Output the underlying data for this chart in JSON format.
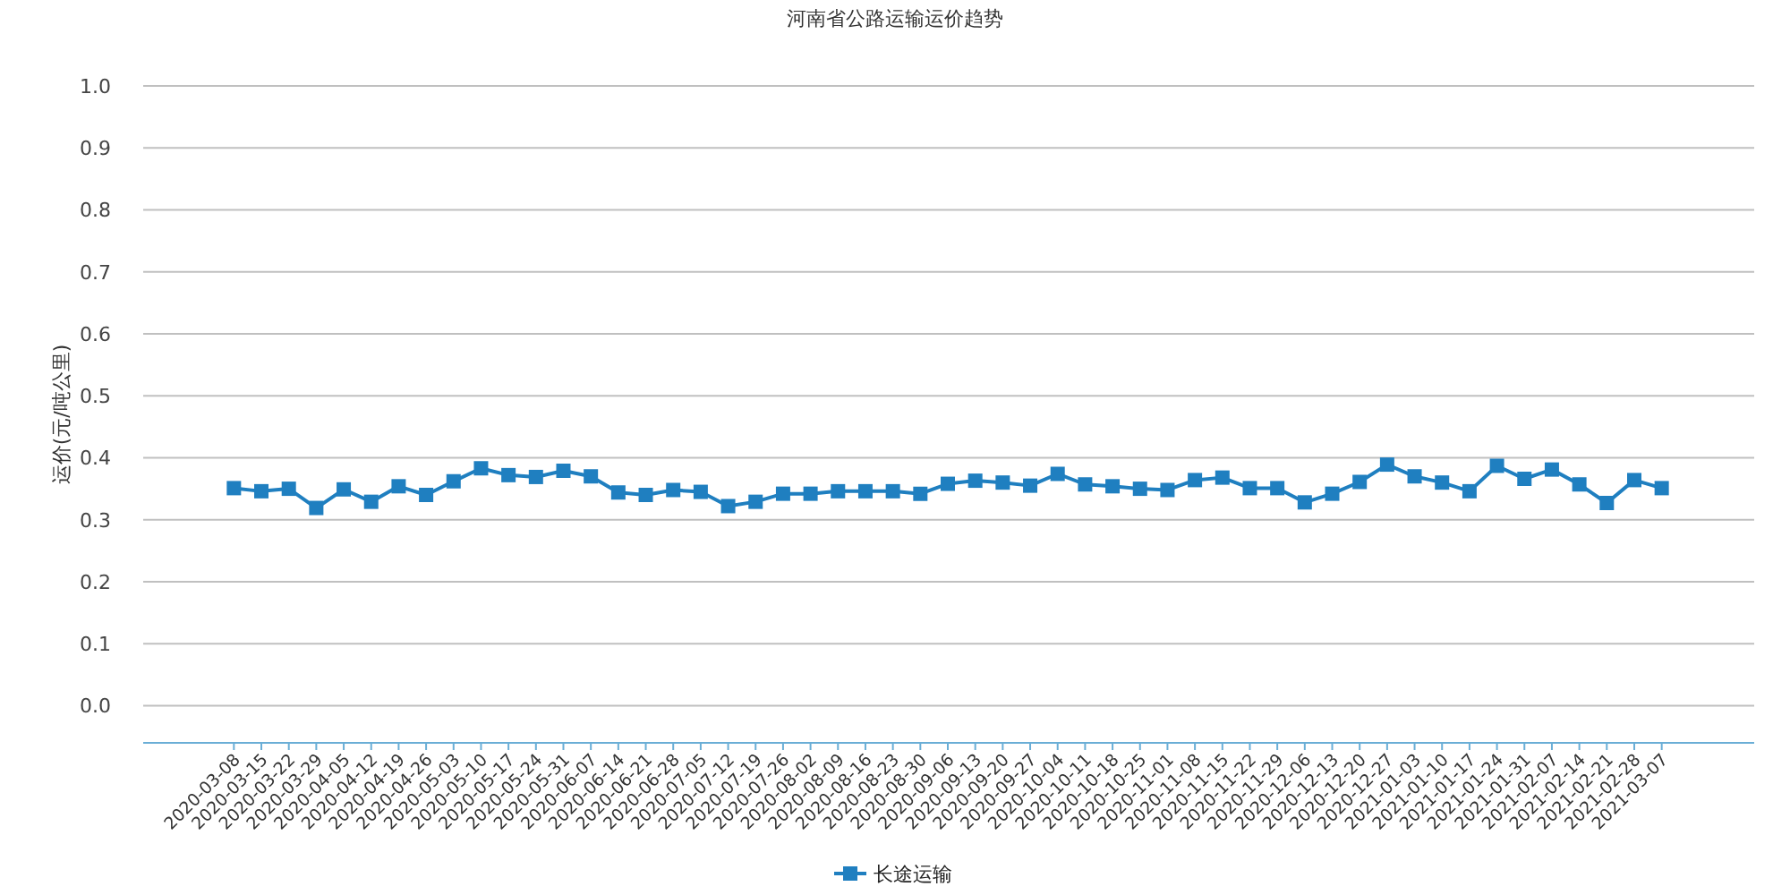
{
  "chart_data": {
    "type": "line",
    "title": "河南省公路运输运价趋势",
    "ylabel": "运价(元/吨公里)",
    "categories": [
      "2020-03-08",
      "2020-03-15",
      "2020-03-22",
      "2020-03-29",
      "2020-04-05",
      "2020-04-12",
      "2020-04-19",
      "2020-04-26",
      "2020-05-03",
      "2020-05-10",
      "2020-05-17",
      "2020-05-24",
      "2020-05-31",
      "2020-06-07",
      "2020-06-14",
      "2020-06-21",
      "2020-06-28",
      "2020-07-05",
      "2020-07-12",
      "2020-07-19",
      "2020-07-26",
      "2020-08-02",
      "2020-08-09",
      "2020-08-16",
      "2020-08-23",
      "2020-08-30",
      "2020-09-06",
      "2020-09-13",
      "2020-09-20",
      "2020-09-27",
      "2020-10-04",
      "2020-10-11",
      "2020-10-18",
      "2020-10-25",
      "2020-11-01",
      "2020-11-08",
      "2020-11-15",
      "2020-11-22",
      "2020-11-29",
      "2020-12-06",
      "2020-12-13",
      "2020-12-20",
      "2020-12-27",
      "2021-01-03",
      "2021-01-10",
      "2021-01-17",
      "2021-01-24",
      "2021-01-31",
      "2021-02-07",
      "2021-02-14",
      "2021-02-21",
      "2021-02-28",
      "2021-03-07"
    ],
    "series": [
      {
        "name": "长途运输",
        "color": "#1f7fc0",
        "values": [
          0.351,
          0.346,
          0.35,
          0.319,
          0.349,
          0.329,
          0.354,
          0.34,
          0.362,
          0.383,
          0.372,
          0.369,
          0.379,
          0.37,
          0.344,
          0.34,
          0.348,
          0.345,
          0.322,
          0.329,
          0.342,
          0.342,
          0.346,
          0.346,
          0.346,
          0.342,
          0.358,
          0.363,
          0.36,
          0.355,
          0.374,
          0.357,
          0.354,
          0.35,
          0.348,
          0.364,
          0.368,
          0.351,
          0.351,
          0.328,
          0.342,
          0.361,
          0.389,
          0.37,
          0.36,
          0.346,
          0.387,
          0.366,
          0.381,
          0.357,
          0.327,
          0.364,
          0.351
        ]
      }
    ],
    "ylim": [
      -0.06,
      1.0
    ],
    "yticks": [
      {
        "value": 0,
        "label": "0.0"
      },
      {
        "value": 0.1,
        "label": "0.1"
      },
      {
        "value": 0.2,
        "label": "0.2"
      },
      {
        "value": 0.3,
        "label": "0.3"
      },
      {
        "value": 0.4,
        "label": "0.4"
      },
      {
        "value": 0.5,
        "label": "0.5"
      },
      {
        "value": 0.6,
        "label": "0.6"
      },
      {
        "value": 0.7,
        "label": "0.7"
      },
      {
        "value": 0.8,
        "label": "0.8"
      },
      {
        "value": 0.9,
        "label": "0.9"
      },
      {
        "value": 1.0,
        "label": "1.0"
      }
    ],
    "grid": "y",
    "legend": "bottom",
    "marker": "square"
  }
}
